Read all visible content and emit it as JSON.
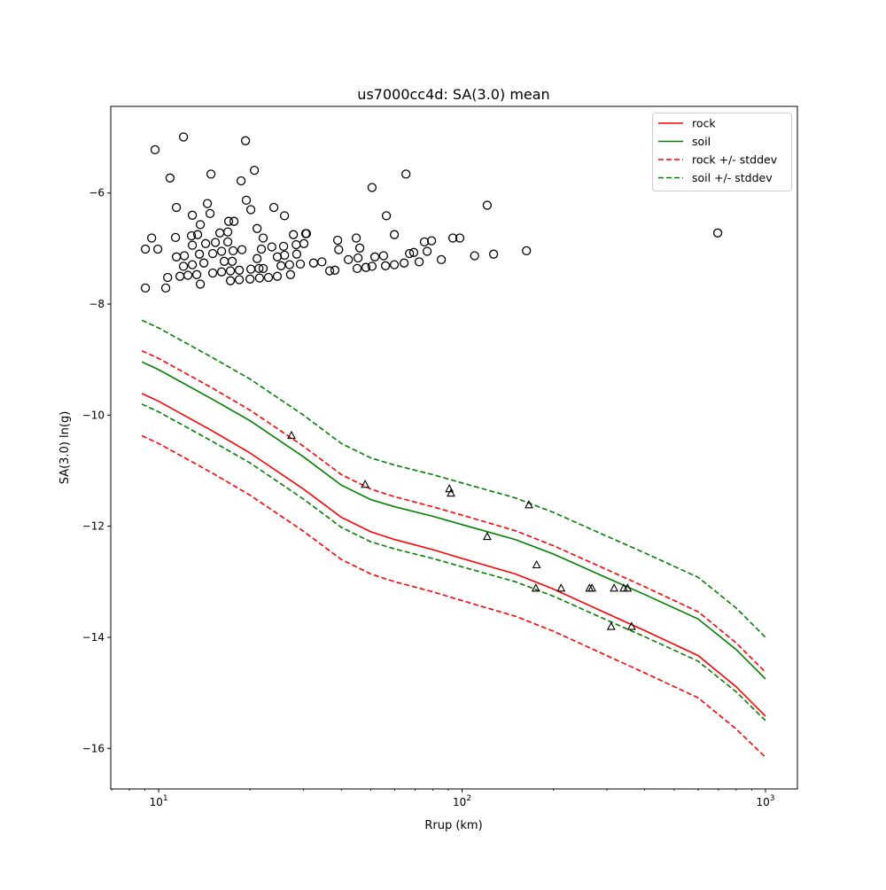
{
  "chart_data": {
    "type": "scatter",
    "title": "us7000cc4d: SA(3.0) mean",
    "xlabel": "Rrup (km)",
    "ylabel": "SA(3.0) ln(g)",
    "xscale": "log",
    "xlim": [
      6.95,
      1274
    ],
    "ylim": [
      -16.73,
      -4.44
    ],
    "x_ticks": [
      {
        "value": 10,
        "base": "10",
        "exp": "1"
      },
      {
        "value": 100,
        "base": "10",
        "exp": "2"
      },
      {
        "value": 1000,
        "base": "10",
        "exp": "3"
      }
    ],
    "y_ticks": [
      {
        "value": -6,
        "label": "−6"
      },
      {
        "value": -8,
        "label": "−8"
      },
      {
        "value": -10,
        "label": "−10"
      },
      {
        "value": -12,
        "label": "−12"
      },
      {
        "value": -14,
        "label": "−14"
      },
      {
        "value": -16,
        "label": "−16"
      }
    ],
    "grid": false,
    "legend_placement": "top-right",
    "colors": {
      "rock": "#ff0000",
      "soil": "#008000",
      "points": "#000000"
    },
    "line_x": [
      8.8,
      10,
      15,
      20,
      30,
      40,
      50,
      60,
      80,
      100,
      150,
      200,
      300,
      400,
      600,
      800,
      1000
    ],
    "series": [
      {
        "name": "rock",
        "color": "#ff0000",
        "dashed": false,
        "legend": true,
        "values": [
          -9.61,
          -9.75,
          -10.28,
          -10.68,
          -11.33,
          -11.84,
          -12.1,
          -12.24,
          -12.42,
          -12.58,
          -12.86,
          -13.13,
          -13.57,
          -13.88,
          -14.33,
          -14.89,
          -15.42
        ]
      },
      {
        "name": "soil",
        "color": "#008000",
        "dashed": false,
        "legend": true,
        "values": [
          -9.04,
          -9.18,
          -9.71,
          -10.1,
          -10.75,
          -11.26,
          -11.52,
          -11.65,
          -11.82,
          -11.97,
          -12.24,
          -12.5,
          -12.93,
          -13.23,
          -13.67,
          -14.22,
          -14.75
        ]
      },
      {
        "name": "rock +/- stddev",
        "color": "#ff0000",
        "dashed": true,
        "legend": true,
        "values": [
          -8.84,
          -8.98,
          -9.51,
          -9.91,
          -10.56,
          -11.07,
          -11.33,
          -11.47,
          -11.65,
          -11.8,
          -12.08,
          -12.35,
          -12.78,
          -13.09,
          -13.54,
          -14.1,
          -14.63
        ]
      },
      {
        "name": "rock - stddev",
        "color": "#ff0000",
        "dashed": true,
        "legend": false,
        "values": [
          -10.37,
          -10.51,
          -11.04,
          -11.44,
          -12.09,
          -12.6,
          -12.86,
          -13.0,
          -13.18,
          -13.34,
          -13.62,
          -13.89,
          -14.33,
          -14.64,
          -15.09,
          -15.65,
          -16.16
        ]
      },
      {
        "name": "soil +/- stddev",
        "color": "#008000",
        "dashed": true,
        "legend": true,
        "values": [
          -8.29,
          -8.43,
          -8.96,
          -9.35,
          -10.0,
          -10.51,
          -10.77,
          -10.9,
          -11.07,
          -11.22,
          -11.49,
          -11.75,
          -12.18,
          -12.48,
          -12.92,
          -13.47,
          -14.0
        ]
      },
      {
        "name": "soil - stddev",
        "color": "#008000",
        "dashed": true,
        "legend": false,
        "values": [
          -9.8,
          -9.94,
          -10.47,
          -10.86,
          -11.51,
          -12.02,
          -12.28,
          -12.41,
          -12.58,
          -12.73,
          -13.0,
          -13.26,
          -13.69,
          -13.99,
          -14.43,
          -14.98,
          -15.5
        ]
      }
    ],
    "circles": [
      [
        12.07,
        -4.99
      ],
      [
        9.73,
        -5.22
      ],
      [
        19.32,
        -5.06
      ],
      [
        10.9,
        -5.73
      ],
      [
        14.87,
        -5.66
      ],
      [
        18.69,
        -5.78
      ],
      [
        20.67,
        -5.59
      ],
      [
        11.44,
        -6.26
      ],
      [
        14.47,
        -6.19
      ],
      [
        14.77,
        -6.37
      ],
      [
        19.45,
        -6.13
      ],
      [
        20.12,
        -6.3
      ],
      [
        23.97,
        -6.26
      ],
      [
        25.98,
        -6.41
      ],
      [
        12.91,
        -6.4
      ],
      [
        13.72,
        -6.57
      ],
      [
        17.01,
        -6.51
      ],
      [
        17.71,
        -6.51
      ],
      [
        21.1,
        -6.64
      ],
      [
        9.48,
        -6.81
      ],
      [
        9.04,
        -7.01
      ],
      [
        9.93,
        -7.01
      ],
      [
        11.36,
        -6.8
      ],
      [
        12.82,
        -6.77
      ],
      [
        13.44,
        -6.75
      ],
      [
        15.9,
        -6.72
      ],
      [
        16.9,
        -6.7
      ],
      [
        22.1,
        -6.81
      ],
      [
        27.8,
        -6.75
      ],
      [
        30.5,
        -6.73
      ],
      [
        12.91,
        -6.94
      ],
      [
        14.28,
        -6.91
      ],
      [
        15.38,
        -6.89
      ],
      [
        16.9,
        -6.88
      ],
      [
        28.4,
        -6.93
      ],
      [
        30.1,
        -6.91
      ],
      [
        11.44,
        -7.15
      ],
      [
        12.15,
        -7.13
      ],
      [
        13.62,
        -7.1
      ],
      [
        15.07,
        -7.09
      ],
      [
        16.12,
        -7.05
      ],
      [
        17.59,
        -7.04
      ],
      [
        18.81,
        -7.02
      ],
      [
        21.8,
        -7.01
      ],
      [
        23.6,
        -6.97
      ],
      [
        25.8,
        -6.96
      ],
      [
        28.5,
        -7.1
      ],
      [
        21.1,
        -7.18
      ],
      [
        24.6,
        -7.15
      ],
      [
        26.0,
        -7.12
      ],
      [
        12.07,
        -7.32
      ],
      [
        12.91,
        -7.29
      ],
      [
        14.09,
        -7.26
      ],
      [
        16.45,
        -7.23
      ],
      [
        17.47,
        -7.23
      ],
      [
        21.4,
        -7.36
      ],
      [
        25.3,
        -7.31
      ],
      [
        27.0,
        -7.29
      ],
      [
        29.3,
        -7.28
      ],
      [
        11.75,
        -7.5
      ],
      [
        12.48,
        -7.48
      ],
      [
        13.35,
        -7.47
      ],
      [
        15.07,
        -7.44
      ],
      [
        16.12,
        -7.42
      ],
      [
        17.24,
        -7.4
      ],
      [
        18.44,
        -7.39
      ],
      [
        20.12,
        -7.37
      ],
      [
        22.1,
        -7.36
      ],
      [
        10.7,
        -7.52
      ],
      [
        13.72,
        -7.64
      ],
      [
        9.04,
        -7.71
      ],
      [
        10.55,
        -7.71
      ],
      [
        17.24,
        -7.58
      ],
      [
        18.44,
        -7.56
      ],
      [
        20.0,
        -7.55
      ],
      [
        21.5,
        -7.53
      ],
      [
        23.0,
        -7.52
      ],
      [
        24.6,
        -7.5
      ],
      [
        27.2,
        -7.47
      ],
      [
        65.3,
        -5.66
      ],
      [
        50.5,
        -5.9
      ],
      [
        121,
        -6.22
      ],
      [
        56.3,
        -6.41
      ],
      [
        59.8,
        -6.75
      ],
      [
        30.7,
        -6.73
      ],
      [
        38.9,
        -6.85
      ],
      [
        44.8,
        -6.81
      ],
      [
        39.2,
        -7.02
      ],
      [
        46.0,
        -6.99
      ],
      [
        75.1,
        -6.88
      ],
      [
        79.3,
        -6.86
      ],
      [
        93.2,
        -6.81
      ],
      [
        98.3,
        -6.81
      ],
      [
        32.4,
        -7.26
      ],
      [
        34.5,
        -7.24
      ],
      [
        36.6,
        -7.4
      ],
      [
        38.1,
        -7.39
      ],
      [
        42.2,
        -7.2
      ],
      [
        45.4,
        -7.17
      ],
      [
        51.6,
        -7.15
      ],
      [
        55.1,
        -7.13
      ],
      [
        45.1,
        -7.36
      ],
      [
        48.2,
        -7.34
      ],
      [
        50.5,
        -7.32
      ],
      [
        55.9,
        -7.31
      ],
      [
        59.8,
        -7.29
      ],
      [
        64.4,
        -7.26
      ],
      [
        67.1,
        -7.09
      ],
      [
        69.3,
        -7.07
      ],
      [
        76.7,
        -7.05
      ],
      [
        72.2,
        -7.24
      ],
      [
        85.4,
        -7.2
      ],
      [
        110,
        -7.13
      ],
      [
        127,
        -7.1
      ],
      [
        163,
        -7.04
      ],
      [
        696,
        -6.72
      ]
    ],
    "triangles": [
      [
        27.4,
        -10.37
      ],
      [
        47.9,
        -11.25
      ],
      [
        90.8,
        -11.33
      ],
      [
        91.9,
        -11.41
      ],
      [
        121,
        -12.19
      ],
      [
        166,
        -11.62
      ],
      [
        176,
        -12.7
      ],
      [
        175,
        -13.12
      ],
      [
        212,
        -13.12
      ],
      [
        263,
        -13.12
      ],
      [
        268,
        -13.12
      ],
      [
        317,
        -13.12
      ],
      [
        341,
        -13.12
      ],
      [
        351,
        -13.12
      ],
      [
        310,
        -13.81
      ],
      [
        362,
        -13.81
      ]
    ]
  }
}
